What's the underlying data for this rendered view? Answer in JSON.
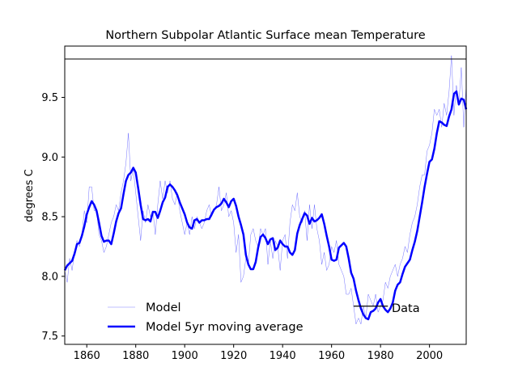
{
  "chart_data": {
    "type": "line",
    "title": "Northern Subpolar Atlantic Surface mean Temperature",
    "xlabel": "",
    "ylabel": "degrees C",
    "xlim": [
      1851,
      2015
    ],
    "ylim": [
      7.43,
      9.93
    ],
    "xticks": [
      1860,
      1880,
      1900,
      1920,
      1940,
      1960,
      1980,
      2000
    ],
    "yticks": [
      7.5,
      8.0,
      8.5,
      9.0,
      9.5
    ],
    "grid": false,
    "legend": [
      {
        "label": "Model",
        "placement": "lower-left"
      },
      {
        "label": "Model 5yr moving average",
        "placement": "lower-left"
      },
      {
        "label": "Data",
        "placement": "lower-right"
      }
    ],
    "series": [
      {
        "name": "Model",
        "color": "#0000ff",
        "style": "thin",
        "x": [
          1851,
          1852,
          1853,
          1854,
          1855,
          1856,
          1857,
          1858,
          1859,
          1860,
          1861,
          1862,
          1863,
          1864,
          1865,
          1866,
          1867,
          1868,
          1869,
          1870,
          1871,
          1872,
          1873,
          1874,
          1875,
          1876,
          1877,
          1878,
          1879,
          1880,
          1881,
          1882,
          1883,
          1884,
          1885,
          1886,
          1887,
          1888,
          1889,
          1890,
          1891,
          1892,
          1893,
          1894,
          1895,
          1896,
          1897,
          1898,
          1899,
          1900,
          1901,
          1902,
          1903,
          1904,
          1905,
          1906,
          1907,
          1908,
          1909,
          1910,
          1911,
          1912,
          1913,
          1914,
          1915,
          1916,
          1917,
          1918,
          1919,
          1920,
          1921,
          1922,
          1923,
          1924,
          1925,
          1926,
          1927,
          1928,
          1929,
          1930,
          1931,
          1932,
          1933,
          1934,
          1935,
          1936,
          1937,
          1938,
          1939,
          1940,
          1941,
          1942,
          1943,
          1944,
          1945,
          1946,
          1947,
          1948,
          1949,
          1950,
          1951,
          1952,
          1953,
          1954,
          1955,
          1956,
          1957,
          1958,
          1959,
          1960,
          1961,
          1962,
          1963,
          1964,
          1965,
          1966,
          1967,
          1968,
          1969,
          1970,
          1971,
          1972,
          1973,
          1974,
          1975,
          1976,
          1977,
          1978,
          1979,
          1980,
          1981,
          1982,
          1983,
          1984,
          1985,
          1986,
          1987,
          1988,
          1989,
          1990,
          1991,
          1992,
          1993,
          1994,
          1995,
          1996,
          1997,
          1998,
          1999,
          2000,
          2001,
          2002,
          2003,
          2004,
          2005,
          2006,
          2007,
          2008,
          2009,
          2010,
          2011,
          2012,
          2013,
          2014,
          2015
        ],
        "y": [
          8.05,
          7.95,
          8.15,
          8.05,
          8.2,
          8.3,
          8.25,
          8.35,
          8.55,
          8.45,
          8.75,
          8.75,
          8.55,
          8.55,
          8.35,
          8.3,
          8.2,
          8.25,
          8.35,
          8.45,
          8.5,
          8.6,
          8.55,
          8.7,
          8.8,
          8.95,
          9.2,
          8.8,
          8.9,
          8.7,
          8.5,
          8.3,
          8.55,
          8.45,
          8.6,
          8.5,
          8.55,
          8.35,
          8.6,
          8.8,
          8.65,
          8.8,
          8.7,
          8.8,
          8.65,
          8.6,
          8.7,
          8.55,
          8.45,
          8.35,
          8.45,
          8.35,
          8.5,
          8.4,
          8.5,
          8.45,
          8.4,
          8.45,
          8.55,
          8.6,
          8.5,
          8.55,
          8.6,
          8.75,
          8.55,
          8.6,
          8.7,
          8.5,
          8.55,
          8.45,
          8.2,
          8.35,
          7.95,
          8.0,
          8.15,
          8.1,
          8.35,
          8.4,
          8.3,
          8.25,
          8.4,
          8.35,
          8.4,
          8.1,
          8.3,
          8.15,
          8.3,
          8.25,
          8.05,
          8.3,
          8.35,
          8.15,
          8.45,
          8.6,
          8.55,
          8.7,
          8.5,
          8.45,
          8.55,
          8.3,
          8.6,
          8.4,
          8.6,
          8.4,
          8.3,
          8.1,
          8.2,
          8.05,
          8.1,
          8.25,
          8.2,
          8.3,
          8.1,
          8.05,
          8.0,
          7.85,
          7.85,
          7.9,
          7.75,
          7.6,
          7.65,
          7.6,
          7.75,
          7.65,
          7.85,
          7.8,
          7.75,
          7.85,
          7.7,
          7.75,
          7.8,
          7.95,
          7.9,
          8.0,
          8.05,
          8.1,
          8.0,
          8.1,
          8.15,
          8.25,
          8.2,
          8.35,
          8.45,
          8.5,
          8.6,
          8.75,
          8.85,
          8.85,
          9.05,
          9.1,
          9.2,
          9.4,
          9.35,
          9.4,
          9.25,
          9.45,
          9.35,
          9.55,
          9.85,
          9.35,
          9.6,
          9.45,
          9.75,
          9.25,
          9.6
        ]
      },
      {
        "name": "Model 5yr moving average",
        "color": "#0000ff",
        "style": "thick",
        "x": [
          1851,
          1852,
          1853,
          1854,
          1855,
          1856,
          1857,
          1858,
          1859,
          1860,
          1861,
          1862,
          1863,
          1864,
          1865,
          1866,
          1867,
          1868,
          1869,
          1870,
          1871,
          1872,
          1873,
          1874,
          1875,
          1876,
          1877,
          1878,
          1879,
          1880,
          1881,
          1882,
          1883,
          1884,
          1885,
          1886,
          1887,
          1888,
          1889,
          1890,
          1891,
          1892,
          1893,
          1894,
          1895,
          1896,
          1897,
          1898,
          1899,
          1900,
          1901,
          1902,
          1903,
          1904,
          1905,
          1906,
          1907,
          1908,
          1909,
          1910,
          1911,
          1912,
          1913,
          1914,
          1915,
          1916,
          1917,
          1918,
          1919,
          1920,
          1921,
          1922,
          1923,
          1924,
          1925,
          1926,
          1927,
          1928,
          1929,
          1930,
          1931,
          1932,
          1933,
          1934,
          1935,
          1936,
          1937,
          1938,
          1939,
          1940,
          1941,
          1942,
          1943,
          1944,
          1945,
          1946,
          1947,
          1948,
          1949,
          1950,
          1951,
          1952,
          1953,
          1954,
          1955,
          1956,
          1957,
          1958,
          1959,
          1960,
          1961,
          1962,
          1963,
          1964,
          1965,
          1966,
          1967,
          1968,
          1969,
          1970,
          1971,
          1972,
          1973,
          1974,
          1975,
          1976,
          1977,
          1978,
          1979,
          1980,
          1981,
          1982,
          1983,
          1984,
          1985,
          1986,
          1987,
          1988,
          1989,
          1990,
          1991,
          1992,
          1993,
          1994,
          1995,
          1996,
          1997,
          1998,
          1999,
          2000,
          2001,
          2002,
          2003,
          2004,
          2005,
          2006,
          2007,
          2008,
          2009,
          2010,
          2011,
          2012,
          2013,
          2014,
          2015
        ],
        "y": [
          8.05,
          8.09,
          8.11,
          8.13,
          8.19,
          8.27,
          8.28,
          8.34,
          8.42,
          8.52,
          8.58,
          8.63,
          8.6,
          8.55,
          8.45,
          8.34,
          8.29,
          8.3,
          8.3,
          8.27,
          8.36,
          8.46,
          8.53,
          8.57,
          8.69,
          8.8,
          8.85,
          8.87,
          8.91,
          8.87,
          8.74,
          8.6,
          8.48,
          8.47,
          8.48,
          8.46,
          8.54,
          8.54,
          8.49,
          8.55,
          8.62,
          8.66,
          8.75,
          8.77,
          8.75,
          8.72,
          8.68,
          8.62,
          8.57,
          8.52,
          8.45,
          8.41,
          8.4,
          8.47,
          8.48,
          8.45,
          8.47,
          8.47,
          8.48,
          8.48,
          8.52,
          8.56,
          8.58,
          8.59,
          8.61,
          8.65,
          8.62,
          8.58,
          8.63,
          8.65,
          8.59,
          8.5,
          8.43,
          8.35,
          8.18,
          8.1,
          8.06,
          8.06,
          8.12,
          8.24,
          8.33,
          8.35,
          8.32,
          8.27,
          8.31,
          8.32,
          8.22,
          8.24,
          8.3,
          8.27,
          8.25,
          8.25,
          8.2,
          8.18,
          8.22,
          8.36,
          8.43,
          8.48,
          8.53,
          8.51,
          8.44,
          8.49,
          8.46,
          8.47,
          8.49,
          8.52,
          8.44,
          8.34,
          8.25,
          8.14,
          8.13,
          8.14,
          8.24,
          8.26,
          8.28,
          8.25,
          8.15,
          8.03,
          7.98,
          7.88,
          7.8,
          7.73,
          7.68,
          7.65,
          7.64,
          7.7,
          7.71,
          7.73,
          7.78,
          7.81,
          7.75,
          7.72,
          7.7,
          7.73,
          7.78,
          7.88,
          7.93,
          7.95,
          8.02,
          8.08,
          8.11,
          8.14,
          8.22,
          8.29,
          8.38,
          8.5,
          8.62,
          8.75,
          8.86,
          8.96,
          8.98,
          9.07,
          9.2,
          9.3,
          9.29,
          9.27,
          9.26,
          9.34,
          9.4,
          9.53,
          9.55,
          9.44,
          9.49,
          9.48,
          9.4
        ]
      },
      {
        "name": "Data",
        "color": "#000000",
        "style": "thin",
        "x": [
          1969,
          1983
        ],
        "y": [
          7.75,
          7.75
        ]
      }
    ]
  }
}
